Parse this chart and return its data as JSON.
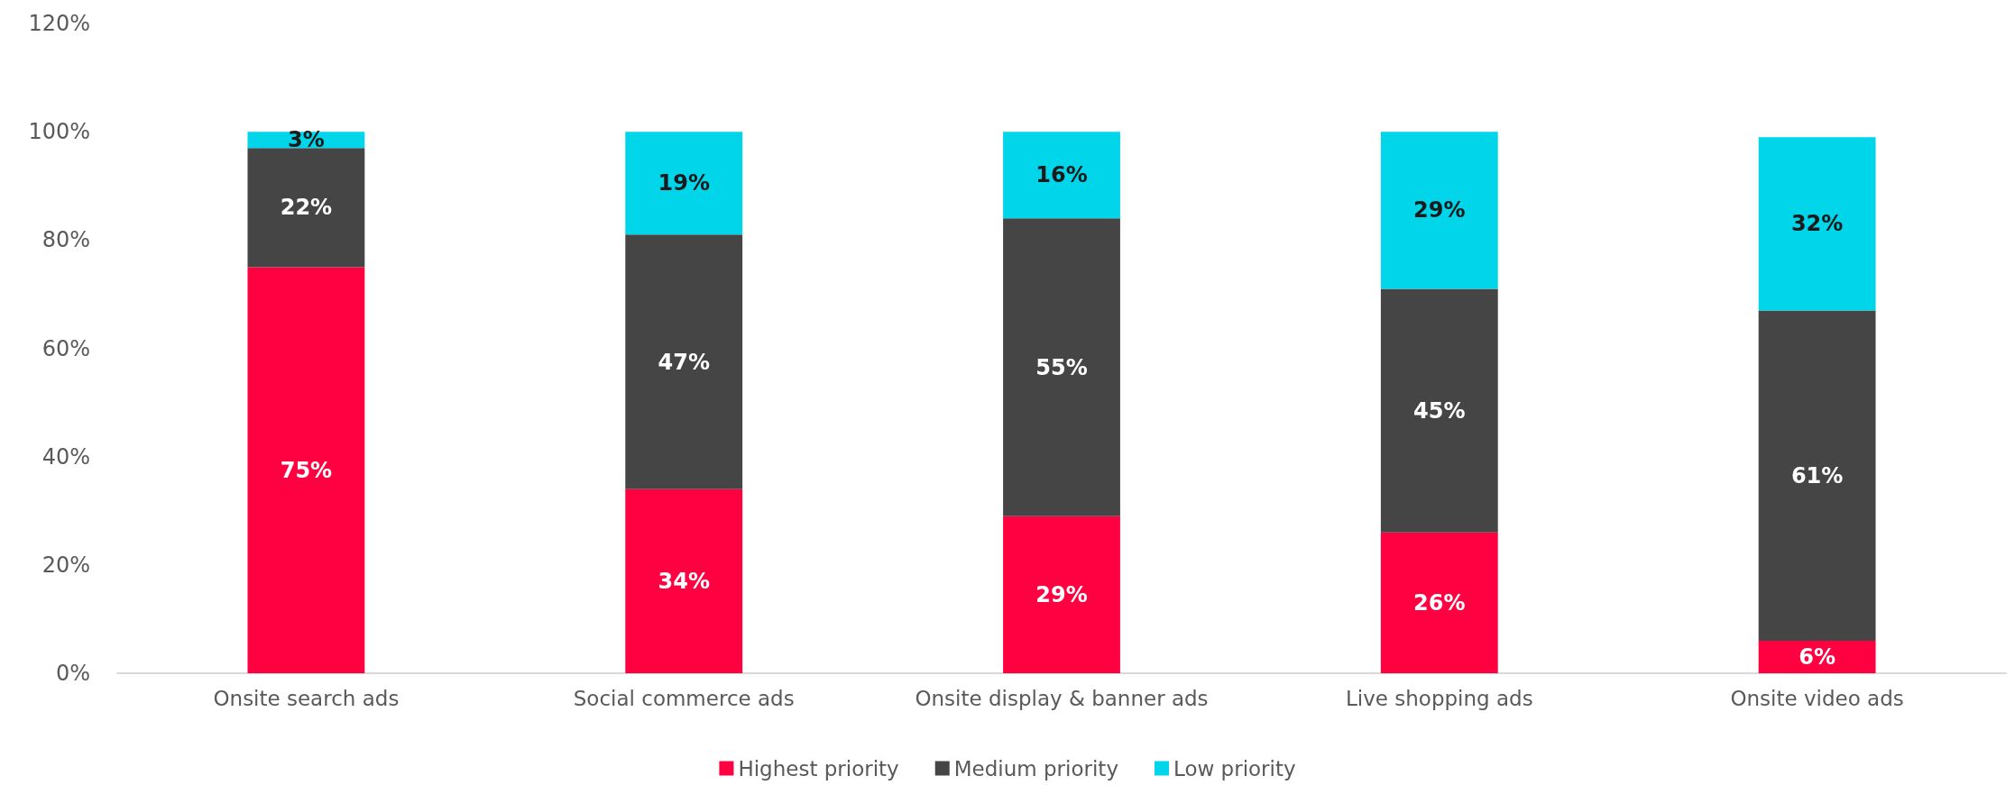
{
  "chart_data": {
    "type": "bar",
    "stacked": true,
    "categories": [
      "Onsite search ads",
      "Social commerce ads",
      "Onsite display & banner ads",
      "Live shopping ads",
      "Onsite video ads"
    ],
    "series": [
      {
        "name": "Highest priority",
        "color": "#ff0040",
        "values": [
          75,
          34,
          29,
          26,
          6
        ]
      },
      {
        "name": "Medium priority",
        "color": "#454545",
        "values": [
          22,
          47,
          55,
          45,
          61
        ]
      },
      {
        "name": "Low priority",
        "color": "#00d5e9",
        "values": [
          3,
          19,
          16,
          29,
          32
        ]
      }
    ],
    "value_labels": [
      [
        "75%",
        "34%",
        "29%",
        "26%",
        "6%"
      ],
      [
        "22%",
        "47%",
        "55%",
        "45%",
        "61%"
      ],
      [
        "3%",
        "19%",
        "16%",
        "29%",
        "32%"
      ]
    ],
    "ylim": [
      0,
      120
    ],
    "yticks": [
      {
        "value": 0,
        "label": "0%"
      },
      {
        "value": 20,
        "label": "20%"
      },
      {
        "value": 40,
        "label": "40%"
      },
      {
        "value": 60,
        "label": "60%"
      },
      {
        "value": 80,
        "label": "80%"
      },
      {
        "value": 100,
        "label": "100%"
      },
      {
        "value": 120,
        "label": "120%"
      }
    ],
    "grid": false,
    "legend": "bottom"
  }
}
